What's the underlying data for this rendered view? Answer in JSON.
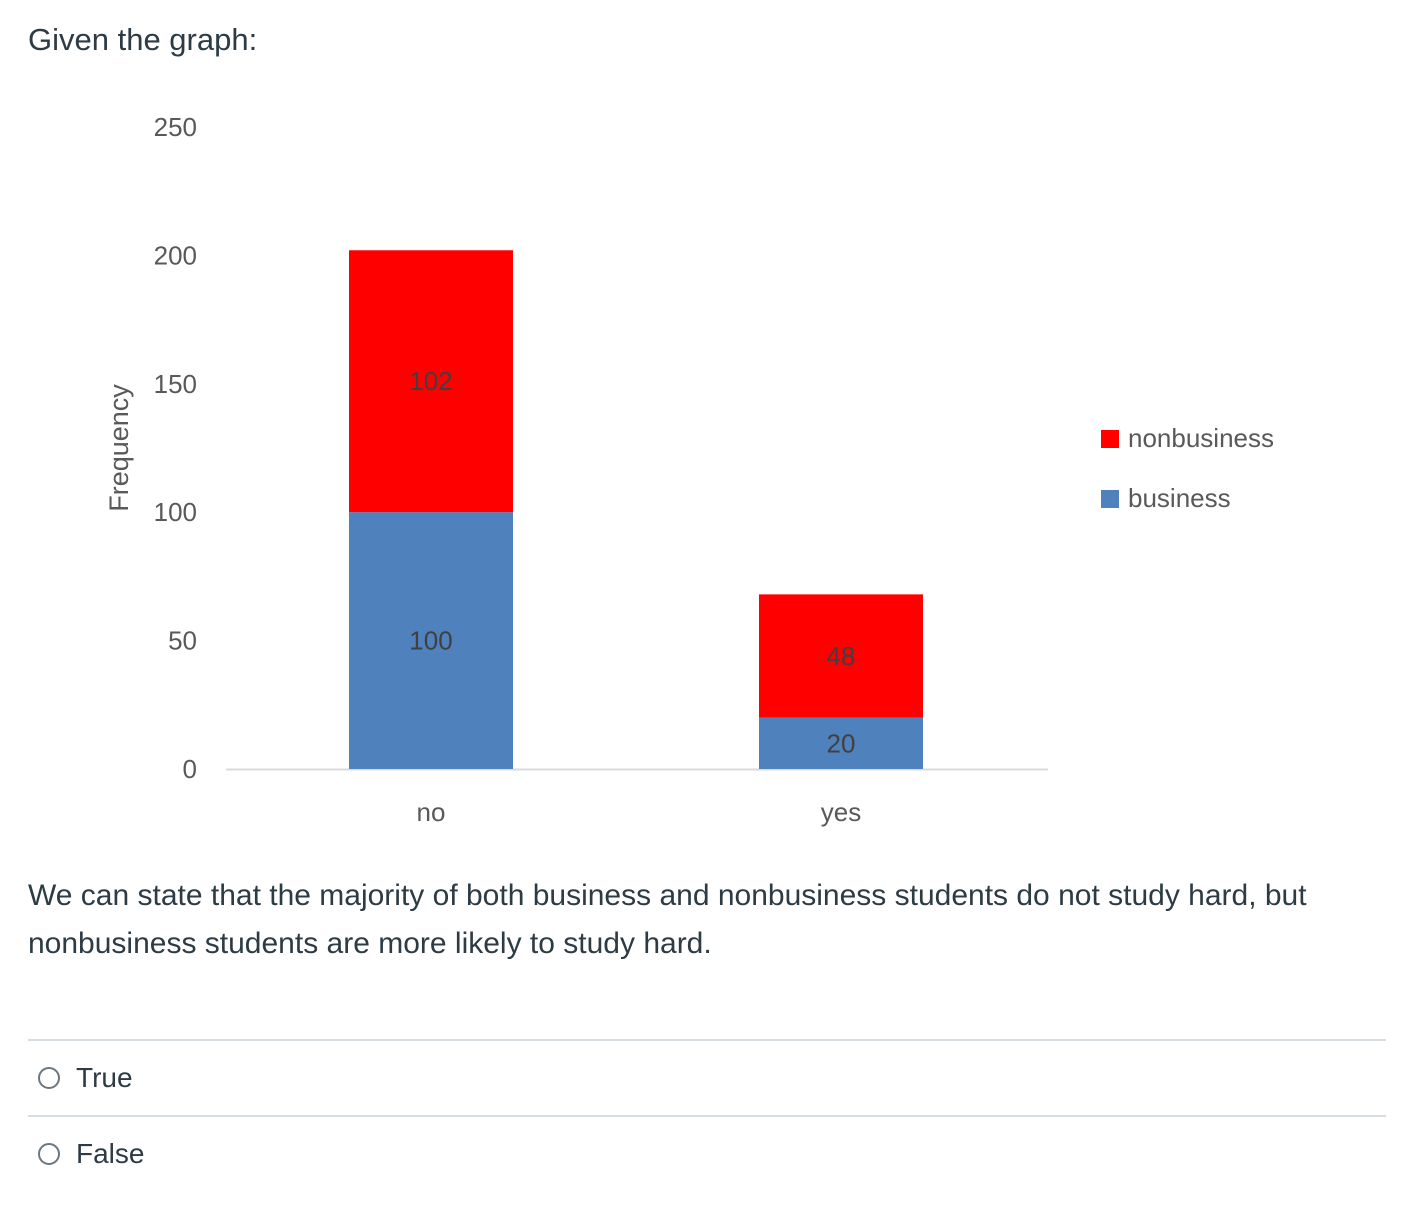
{
  "question": {
    "intro": "Given the graph:",
    "statement": "We can state that the majority of both business and nonbusiness students do not study hard, but nonbusiness students are more likely to study hard.",
    "options": [
      {
        "label": "True"
      },
      {
        "label": "False"
      }
    ]
  },
  "chart_data": {
    "type": "bar",
    "stacked": true,
    "categories": [
      "no",
      "yes"
    ],
    "series": [
      {
        "name": "business",
        "values": [
          100,
          20
        ],
        "color": "#4f81bd"
      },
      {
        "name": "nonbusiness",
        "values": [
          102,
          48
        ],
        "color": "#ff0000"
      }
    ],
    "title": "",
    "xlabel": "",
    "ylabel": "Frequency",
    "ylim": [
      0,
      250
    ],
    "yticks": [
      0,
      50,
      100,
      150,
      200,
      250
    ],
    "grid": false,
    "legend": {
      "position": "right",
      "order": [
        "nonbusiness",
        "business"
      ]
    },
    "data_labels": true
  }
}
